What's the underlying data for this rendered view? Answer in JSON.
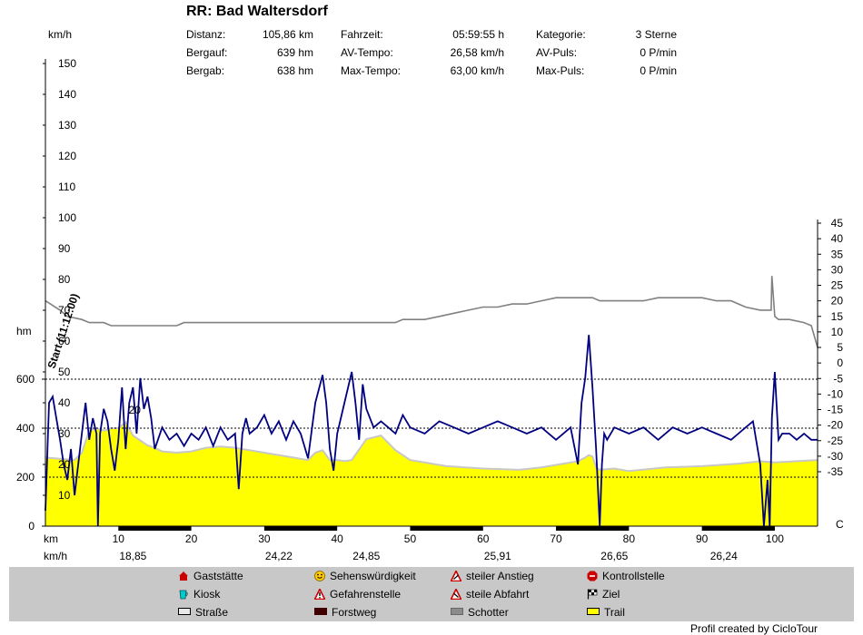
{
  "title": "RR: Bad Waltersdorf",
  "units": {
    "speed": "km/h",
    "height": "hm",
    "km": "km",
    "kmh": "km/h"
  },
  "stats": [
    {
      "label": "Distanz:",
      "value": "105,86 km"
    },
    {
      "label": "Bergauf:",
      "value": "639 hm"
    },
    {
      "label": "Bergab:",
      "value": "638 hm"
    },
    {
      "label": "Fahrzeit:",
      "value": "05:59:55 h"
    },
    {
      "label": "AV-Tempo:",
      "value": "26,58 km/h"
    },
    {
      "label": "Max-Tempo:",
      "value": "63,00 km/h"
    },
    {
      "label": "Kategorie:",
      "value": "3 Sterne"
    },
    {
      "label": "AV-Puls:",
      "value": "0 P/min"
    },
    {
      "label": "Max-Puls:",
      "value": "0 P/min"
    }
  ],
  "chart_data": {
    "type": "area",
    "title": "RR: Bad Waltersdorf",
    "start_label": "Start (11:12:00)",
    "marker_label": "20",
    "right_axis_end_label": "C",
    "xlabel": "km",
    "xlim": [
      0,
      105.86
    ],
    "x_ticks": [
      10,
      20,
      30,
      40,
      50,
      60,
      70,
      80,
      90,
      100
    ],
    "speed_axis": {
      "label": "km/h",
      "ticks": [
        10,
        20,
        30,
        40,
        50,
        60,
        70,
        80,
        90,
        100,
        110,
        120,
        130,
        140,
        150
      ],
      "range": [
        0,
        150
      ]
    },
    "height_axis": {
      "label": "hm",
      "ticks": [
        0,
        200,
        400,
        600
      ],
      "range": [
        0,
        600
      ]
    },
    "right_axis": {
      "ticks": [
        45,
        40,
        35,
        30,
        25,
        20,
        15,
        10,
        5,
        0,
        -5,
        -10,
        -15,
        -20,
        -25,
        -30,
        -35
      ],
      "range": [
        -35,
        45
      ]
    },
    "segment_speeds": [
      {
        "label": "18,85",
        "km": 12
      },
      {
        "label": "24,22",
        "km": 32
      },
      {
        "label": "24,85",
        "km": 44
      },
      {
        "label": "25,91",
        "km": 62
      },
      {
        "label": "26,65",
        "km": 78
      },
      {
        "label": "26,24",
        "km": 93
      }
    ],
    "series": [
      {
        "name": "elevation",
        "color": "#ffff00",
        "x": [
          0,
          2,
          4,
          5,
          6,
          7,
          8,
          9,
          10,
          11,
          12,
          13,
          14,
          15,
          16,
          18,
          20,
          22,
          24,
          26,
          28,
          30,
          32,
          34,
          35,
          36,
          37,
          38,
          39,
          40,
          41,
          42,
          44,
          46,
          48,
          50,
          55,
          60,
          65,
          68,
          70,
          72,
          73,
          74,
          74.5,
          75,
          75.5,
          76,
          78,
          80,
          85,
          90,
          95,
          98,
          100,
          103,
          105.86
        ],
        "y": [
          280,
          275,
          270,
          300,
          390,
          400,
          390,
          400,
          400,
          425,
          370,
          350,
          330,
          320,
          305,
          300,
          305,
          320,
          325,
          320,
          310,
          300,
          290,
          280,
          275,
          270,
          300,
          310,
          270,
          270,
          265,
          270,
          355,
          370,
          310,
          270,
          245,
          235,
          230,
          240,
          250,
          260,
          265,
          280,
          290,
          285,
          240,
          230,
          235,
          225,
          240,
          245,
          255,
          265,
          260,
          265,
          270
        ]
      },
      {
        "name": "gradient",
        "color": "#808080",
        "x": [
          0,
          2,
          3,
          5,
          6,
          7,
          8,
          9,
          10,
          12,
          14,
          16,
          18,
          19,
          20,
          21,
          22,
          24,
          26,
          28,
          30,
          32,
          34,
          36,
          38,
          40,
          42,
          44,
          46,
          48,
          49,
          50,
          52,
          54,
          56,
          58,
          60,
          62,
          64,
          66,
          68,
          70,
          72,
          74,
          75,
          76,
          78,
          80,
          82,
          84,
          86,
          88,
          90,
          92,
          94,
          96,
          98,
          99.5,
          99.6,
          100,
          100.5,
          102,
          104,
          105,
          105.86
        ],
        "y": [
          20,
          17,
          15,
          14,
          13,
          13,
          13,
          12,
          12,
          12,
          12,
          12,
          12,
          13,
          13,
          13,
          13,
          13,
          13,
          13,
          13,
          13,
          13,
          13,
          13,
          13,
          13,
          13,
          13,
          13,
          14,
          14,
          14,
          15,
          16,
          17,
          18,
          18,
          19,
          19,
          20,
          21,
          21,
          21,
          21,
          20,
          20,
          20,
          20,
          21,
          21,
          21,
          21,
          20,
          20,
          18,
          17,
          17,
          28,
          15,
          14,
          14,
          13,
          12,
          5
        ]
      },
      {
        "name": "speed",
        "color": "#000080",
        "x": [
          0,
          0.5,
          1,
          1.5,
          2,
          2.5,
          3,
          3.5,
          4,
          4.5,
          5,
          5.5,
          6,
          6.5,
          7,
          7.2,
          7.5,
          8,
          8.5,
          9,
          9.5,
          10,
          10.5,
          11,
          11.5,
          12,
          12.5,
          13,
          13.5,
          14,
          14.5,
          15,
          16,
          17,
          18,
          19,
          20,
          21,
          22,
          23,
          24,
          25,
          26,
          26.5,
          27,
          27.5,
          28,
          29,
          30,
          31,
          32,
          33,
          34,
          35,
          36,
          37,
          38,
          38.5,
          39,
          39.5,
          40,
          41,
          42,
          42.5,
          43,
          43.5,
          44,
          45,
          46,
          47,
          48,
          49,
          50,
          52,
          54,
          56,
          58,
          60,
          62,
          64,
          66,
          68,
          70,
          72,
          73,
          73.5,
          74,
          74.5,
          75,
          75.5,
          76,
          76.3,
          76.6,
          77,
          78,
          80,
          82,
          84,
          86,
          88,
          90,
          92,
          94,
          95,
          96,
          97,
          98,
          98.5,
          99,
          99.3,
          99.6,
          100,
          100.5,
          101,
          102,
          103,
          104,
          105,
          105.86
        ],
        "y": [
          5,
          40,
          42,
          35,
          28,
          20,
          15,
          25,
          10,
          20,
          30,
          40,
          28,
          35,
          30,
          0,
          30,
          38,
          34,
          25,
          18,
          28,
          45,
          25,
          40,
          45,
          30,
          48,
          38,
          42,
          35,
          25,
          32,
          28,
          30,
          26,
          30,
          28,
          32,
          26,
          32,
          28,
          30,
          12,
          30,
          35,
          30,
          32,
          36,
          30,
          34,
          28,
          34,
          30,
          22,
          40,
          49,
          40,
          25,
          18,
          30,
          40,
          50,
          40,
          28,
          46,
          38,
          32,
          34,
          32,
          30,
          36,
          32,
          30,
          34,
          32,
          30,
          32,
          34,
          32,
          30,
          32,
          28,
          32,
          20,
          40,
          48,
          62,
          45,
          25,
          0,
          20,
          30,
          28,
          32,
          30,
          32,
          28,
          32,
          30,
          32,
          30,
          28,
          30,
          32,
          34,
          20,
          0,
          15,
          0,
          35,
          50,
          28,
          30,
          30,
          28,
          30,
          28,
          28
        ]
      }
    ]
  },
  "legend": [
    {
      "label": "Gaststätte",
      "icon": "house-icon",
      "color": "#cc0000"
    },
    {
      "label": "Sehenswürdigkeit",
      "icon": "smiley-icon",
      "color": "#ffcc00"
    },
    {
      "label": "steiler Anstieg",
      "icon": "warning-triangle-icon",
      "color": "#cc0000"
    },
    {
      "label": "Kontrollstelle",
      "icon": "stop-sign-icon",
      "color": "#cc0000"
    },
    {
      "label": "Kiosk",
      "icon": "cup-icon",
      "color": "#00cccc"
    },
    {
      "label": "Gefahrenstelle",
      "icon": "warning-triangle-icon",
      "color": "#cc0000"
    },
    {
      "label": "steile Abfahrt",
      "icon": "warning-triangle-icon",
      "color": "#cc0000"
    },
    {
      "label": "Ziel",
      "icon": "checkered-flag-icon",
      "color": "#000000"
    },
    {
      "label": "Straße",
      "icon": "road-swatch-icon",
      "color": "#e8e8e8"
    },
    {
      "label": "Forstweg",
      "icon": "forest-swatch-icon",
      "color": "#400000"
    },
    {
      "label": "Schotter",
      "icon": "gravel-swatch-icon",
      "color": "#8c8c8c"
    },
    {
      "label": "Trail",
      "icon": "trail-swatch-icon",
      "color": "#ffff00"
    }
  ],
  "credit": "Profil created by CicloTour"
}
